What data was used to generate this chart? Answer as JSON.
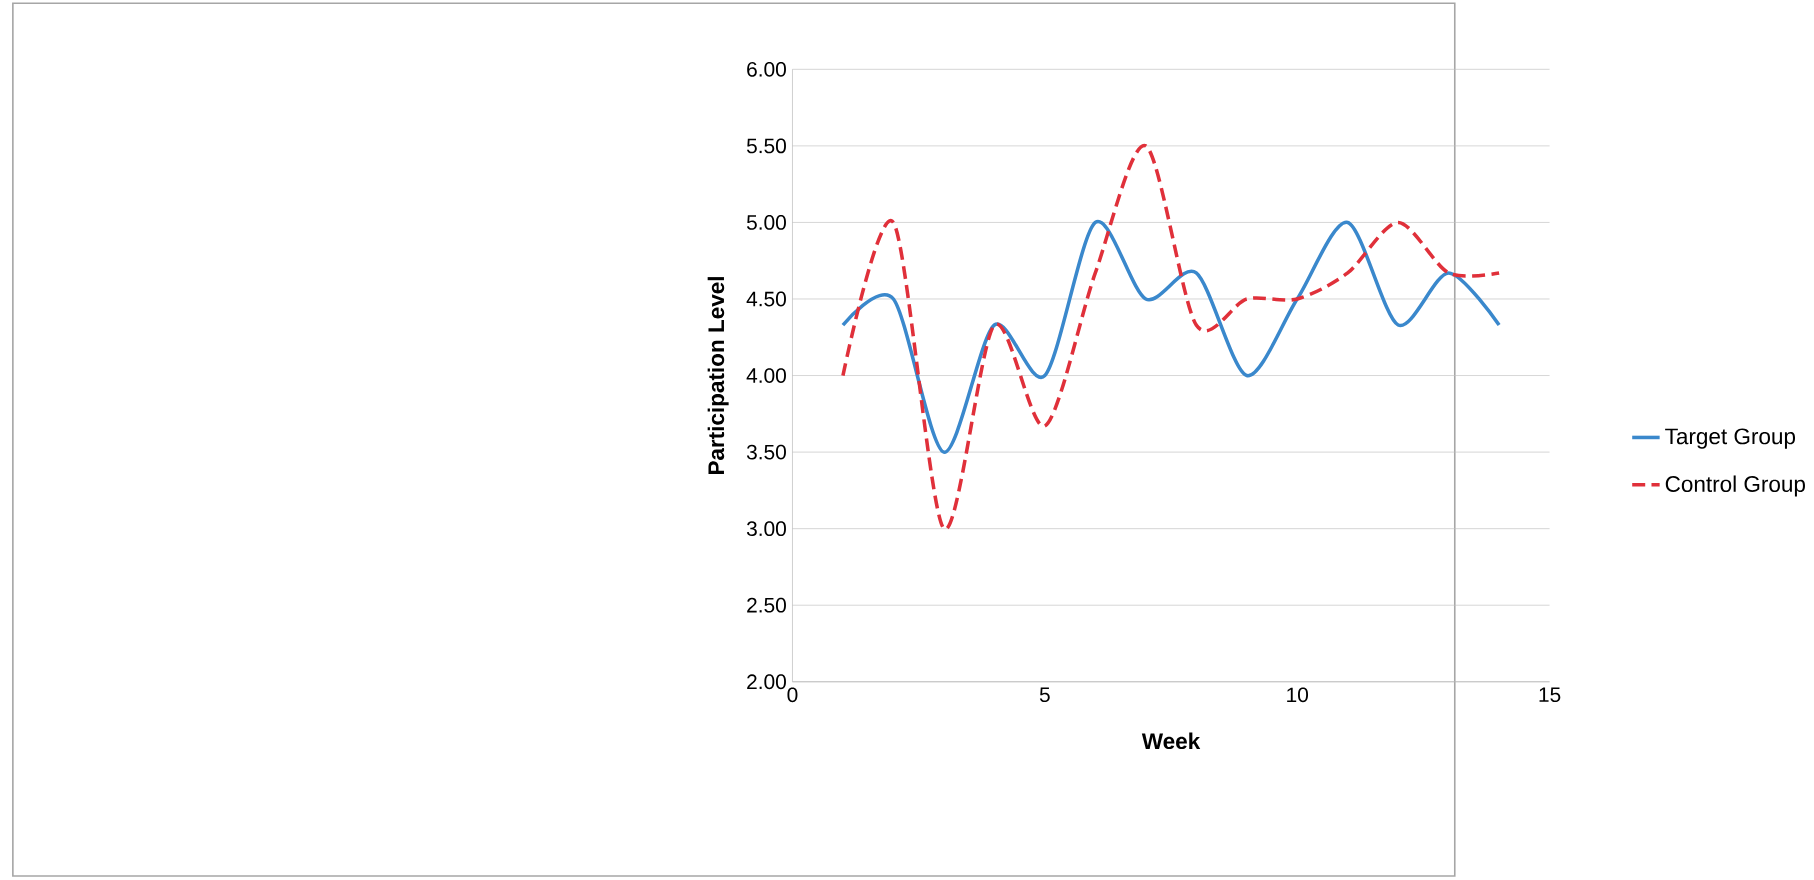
{
  "chart_data": {
    "type": "line",
    "xlabel": "Week",
    "ylabel": "Participation Level",
    "x": [
      1,
      2,
      3,
      4,
      5,
      6,
      7,
      8,
      9,
      10,
      11,
      12,
      13,
      14
    ],
    "series": [
      {
        "name": "Target Group",
        "color": "#3a88cc",
        "line_style": "solid",
        "values": [
          4.33,
          4.5,
          3.5,
          4.33,
          4.0,
          5.0,
          4.5,
          4.67,
          4.0,
          4.5,
          5.0,
          4.33,
          4.67,
          4.33
        ]
      },
      {
        "name": "Control Group",
        "color": "#e0303a",
        "line_style": "dashed",
        "values": [
          4.0,
          5.0,
          3.0,
          4.33,
          3.67,
          4.67,
          5.5,
          4.33,
          4.5,
          4.5,
          4.67,
          5.0,
          4.67,
          4.67
        ]
      }
    ],
    "xlim": [
      0,
      15
    ],
    "ylim": [
      2,
      6
    ],
    "xticks": [
      0,
      5,
      10,
      15
    ],
    "yticks": [
      {
        "value": 2,
        "label": "2.00"
      },
      {
        "value": 2.5,
        "label": "2.50"
      },
      {
        "value": 3,
        "label": "3.00"
      },
      {
        "value": 3.5,
        "label": "3.50"
      },
      {
        "value": 4,
        "label": "4.00"
      },
      {
        "value": 4.5,
        "label": "4.50"
      },
      {
        "value": 5,
        "label": "5.00"
      },
      {
        "value": 5.5,
        "label": "5.50"
      },
      {
        "value": 6,
        "label": "6.00"
      }
    ],
    "grid": "y",
    "legend": "right",
    "marker": "none"
  }
}
